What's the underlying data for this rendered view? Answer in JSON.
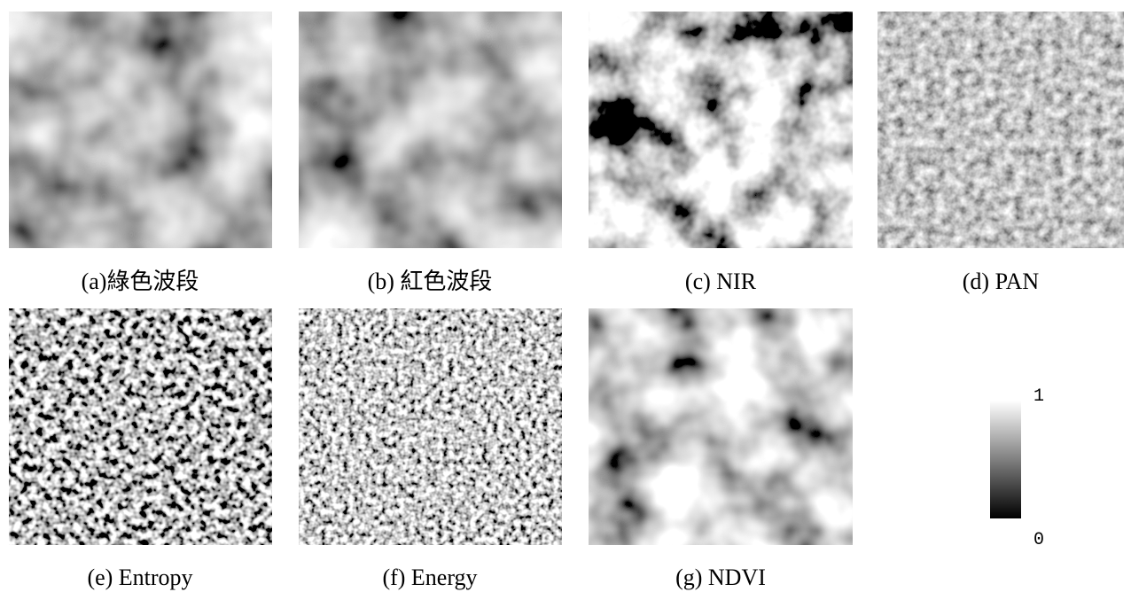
{
  "panels": [
    {
      "caption": "(a)綠色波段"
    },
    {
      "caption": "(b) 紅色波段"
    },
    {
      "caption": "(c) NIR"
    },
    {
      "caption": "(d) PAN"
    },
    {
      "caption": "(e) Entropy"
    },
    {
      "caption": "(f) Energy"
    },
    {
      "caption": "(g) NDVI"
    }
  ],
  "colorbar": {
    "max_label": "1",
    "min_label": "0"
  }
}
